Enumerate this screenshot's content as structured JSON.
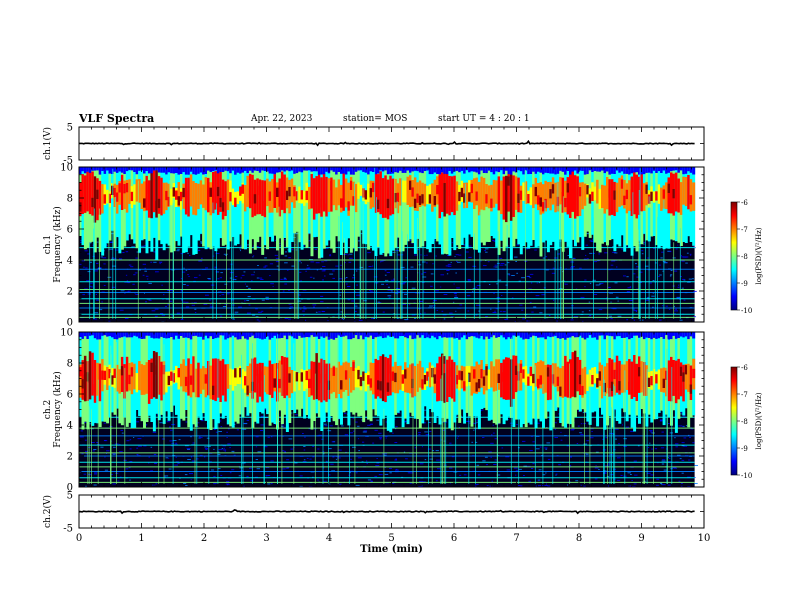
{
  "header": {
    "title": "VLF Spectra",
    "date": "Apr. 22, 2023",
    "station": "station= MOS",
    "start_ut": "start UT =  4 : 20 : 1"
  },
  "colors": {
    "colormap": [
      "#00007f",
      "#0000ff",
      "#007fff",
      "#00ffff",
      "#7fff7f",
      "#ffff00",
      "#ff7f00",
      "#ff0000",
      "#7f0000"
    ],
    "background": "#000020",
    "trace": "#000000"
  },
  "chart_data": [
    {
      "type": "line",
      "id": "ch1-voltage",
      "ylabel": "ch.1(V)",
      "ylim": [
        -5,
        5
      ],
      "yticks": [
        "5",
        "-5"
      ],
      "x_range": [
        0,
        10
      ],
      "level": 0
    },
    {
      "type": "heatmap",
      "id": "ch1-spectrogram",
      "ylabel_line1": "ch.1",
      "ylabel_line2": "Frequency (kHz)",
      "ylim": [
        0,
        10
      ],
      "yticks": [
        "0",
        "2",
        "4",
        "6",
        "8",
        "10"
      ],
      "x_range": [
        0,
        10
      ],
      "data_extent_min": 9.85,
      "band_center_khz": 8.2,
      "colorbar": {
        "label": "log(PSD)(V²/Hz)",
        "range": [
          -10,
          -6
        ],
        "ticks": [
          "-6",
          "-7",
          "-8",
          "-9",
          "-10"
        ]
      }
    },
    {
      "type": "heatmap",
      "id": "ch2-spectrogram",
      "ylabel_line1": "ch.2",
      "ylabel_line2": "Frequency (kHz)",
      "ylim": [
        0,
        10
      ],
      "yticks": [
        "0",
        "2",
        "4",
        "6",
        "8",
        "10"
      ],
      "x_range": [
        0,
        10
      ],
      "data_extent_min": 9.85,
      "band_center_khz": 7.0,
      "colorbar": {
        "label": "log(PSD)(V²/Hz)",
        "range": [
          -10,
          -6
        ],
        "ticks": [
          "-6",
          "-7",
          "-8",
          "-9",
          "-10"
        ]
      }
    },
    {
      "type": "line",
      "id": "ch2-voltage",
      "ylabel": "ch.2(V)",
      "ylim": [
        -5,
        5
      ],
      "yticks": [
        "5",
        "-5"
      ],
      "x_range": [
        0,
        10
      ],
      "level": 0
    }
  ],
  "x_axis": {
    "label": "Time (min)",
    "ticks": [
      "0",
      "1",
      "2",
      "3",
      "4",
      "5",
      "6",
      "7",
      "8",
      "9",
      "10"
    ]
  }
}
